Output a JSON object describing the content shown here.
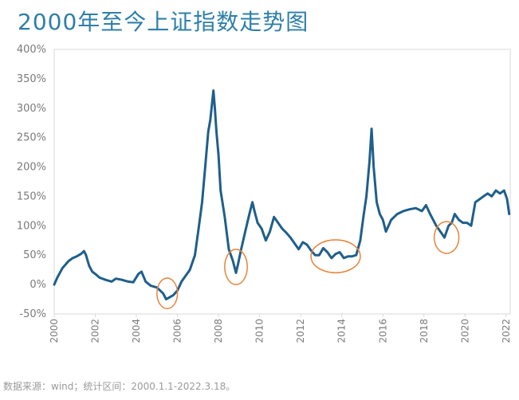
{
  "title": "2000年至今上证指数走势图",
  "source": "数据来源：wind；统计区间：2000.1.1-2022.3.18。",
  "colors": {
    "title": "#2e7fa8",
    "line": "#1f5f8b",
    "circle": "#e8833a",
    "axis": "#d9d9d9",
    "tick": "#7a7a7a"
  },
  "chart_data": {
    "type": "line",
    "title": "2000年至今上证指数走势图",
    "xlabel": "",
    "ylabel": "",
    "ylim": [
      -0.5,
      4.0
    ],
    "xlim": [
      2000.0,
      2022.2
    ],
    "yticks": [
      -0.5,
      0.0,
      0.5,
      1.0,
      1.5,
      2.0,
      2.5,
      3.0,
      3.5,
      4.0
    ],
    "ytick_labels": [
      "-50%",
      "0%",
      "50%",
      "100%",
      "150%",
      "200%",
      "250%",
      "300%",
      "350%",
      "400%"
    ],
    "xticks": [
      2000,
      2002,
      2004,
      2006,
      2008,
      2010,
      2012,
      2014,
      2016,
      2018,
      2020,
      2022
    ],
    "xtick_labels": [
      "2000",
      "2002",
      "2004",
      "2006",
      "2008",
      "2010",
      "2012",
      "2014",
      "2016",
      "2018",
      "2020",
      "2022"
    ],
    "grid": false,
    "series": [
      {
        "x": [
          2000.0,
          2000.15,
          2000.4,
          2000.7,
          2000.9,
          2001.1,
          2001.3,
          2001.45,
          2001.55,
          2001.7,
          2001.85,
          2002.0,
          2002.2,
          2002.5,
          2002.8,
          2003.0,
          2003.3,
          2003.6,
          2003.85,
          2004.1,
          2004.25,
          2004.45,
          2004.7,
          2005.0,
          2005.3,
          2005.45,
          2005.6,
          2005.8,
          2006.0,
          2006.2,
          2006.4,
          2006.6,
          2006.85,
          2007.05,
          2007.2,
          2007.35,
          2007.5,
          2007.6,
          2007.75,
          2007.82,
          2007.9,
          2008.0,
          2008.1,
          2008.3,
          2008.5,
          2008.7,
          2008.85,
          2008.95,
          2009.1,
          2009.3,
          2009.5,
          2009.65,
          2009.75,
          2009.9,
          2010.1,
          2010.3,
          2010.5,
          2010.7,
          2010.9,
          2011.1,
          2011.3,
          2011.5,
          2011.7,
          2011.9,
          2012.1,
          2012.3,
          2012.5,
          2012.7,
          2012.9,
          2013.1,
          2013.3,
          2013.5,
          2013.7,
          2013.9,
          2014.1,
          2014.3,
          2014.5,
          2014.7,
          2014.9,
          2015.05,
          2015.2,
          2015.35,
          2015.45,
          2015.55,
          2015.7,
          2015.85,
          2016.0,
          2016.15,
          2016.4,
          2016.7,
          2017.0,
          2017.3,
          2017.6,
          2017.9,
          2018.1,
          2018.3,
          2018.6,
          2018.9,
          2019.0,
          2019.2,
          2019.35,
          2019.5,
          2019.7,
          2019.9,
          2020.1,
          2020.3,
          2020.5,
          2020.7,
          2020.9,
          2021.1,
          2021.3,
          2021.5,
          2021.7,
          2021.9,
          2022.05,
          2022.15
        ],
        "y": [
          0.0,
          0.12,
          0.28,
          0.4,
          0.45,
          0.48,
          0.52,
          0.57,
          0.5,
          0.32,
          0.22,
          0.18,
          0.12,
          0.08,
          0.05,
          0.1,
          0.08,
          0.05,
          0.04,
          0.18,
          0.22,
          0.05,
          -0.02,
          -0.05,
          -0.15,
          -0.25,
          -0.22,
          -0.18,
          -0.1,
          0.05,
          0.15,
          0.25,
          0.5,
          1.0,
          1.4,
          2.0,
          2.6,
          2.8,
          3.3,
          3.0,
          2.6,
          2.2,
          1.6,
          1.15,
          0.6,
          0.4,
          0.2,
          0.35,
          0.6,
          0.9,
          1.2,
          1.4,
          1.25,
          1.05,
          0.95,
          0.75,
          0.9,
          1.15,
          1.05,
          0.95,
          0.88,
          0.8,
          0.7,
          0.6,
          0.72,
          0.68,
          0.58,
          0.5,
          0.5,
          0.62,
          0.55,
          0.45,
          0.52,
          0.55,
          0.45,
          0.48,
          0.48,
          0.5,
          0.75,
          1.15,
          1.5,
          2.1,
          2.65,
          2.0,
          1.4,
          1.2,
          1.1,
          0.9,
          1.1,
          1.2,
          1.25,
          1.28,
          1.3,
          1.25,
          1.35,
          1.2,
          1.0,
          0.85,
          0.8,
          1.0,
          1.05,
          1.2,
          1.1,
          1.05,
          1.05,
          1.0,
          1.4,
          1.45,
          1.5,
          1.55,
          1.5,
          1.6,
          1.55,
          1.6,
          1.45,
          1.2
        ]
      }
    ],
    "annotations": [
      {
        "shape": "ellipse",
        "cx": 2005.5,
        "cy": -0.15,
        "rx": 0.5,
        "ry": 0.26,
        "color": "#e8833a"
      },
      {
        "shape": "ellipse",
        "cx": 2008.85,
        "cy": 0.3,
        "rx": 0.55,
        "ry": 0.3,
        "color": "#e8833a"
      },
      {
        "shape": "ellipse",
        "cx": 2013.7,
        "cy": 0.48,
        "rx": 1.2,
        "ry": 0.28,
        "color": "#e8833a"
      },
      {
        "shape": "ellipse",
        "cx": 2019.1,
        "cy": 0.8,
        "rx": 0.6,
        "ry": 0.27,
        "color": "#e8833a"
      }
    ]
  }
}
